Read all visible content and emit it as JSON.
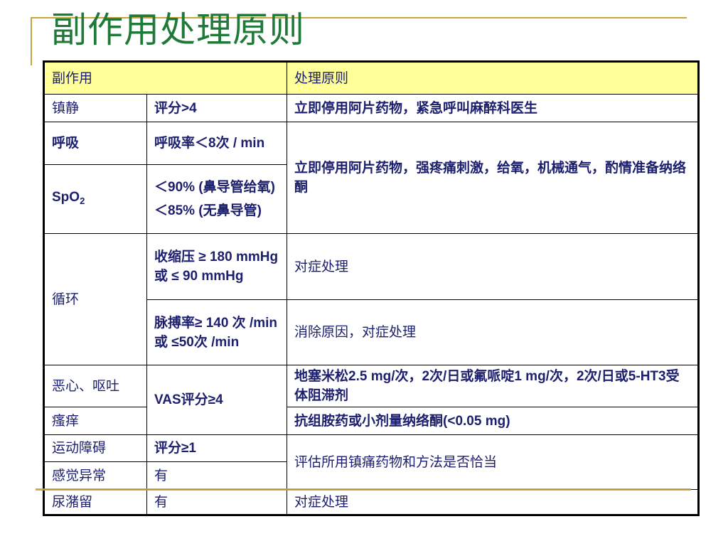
{
  "title": "副作用处理原则",
  "colors": {
    "title": "#1f7a3a",
    "text": "#1c1f6e",
    "header_bg": "#ffff99",
    "accent_line": "#c9a43a"
  },
  "table": {
    "header": {
      "side_effect": "副作用",
      "principle": "处理原则"
    },
    "rows": {
      "sedation": {
        "name": "镇静",
        "criterion": "评分>4",
        "action": "立即停用阿片药物，紧急呼叫麻醉科医生"
      },
      "respiration": {
        "name": "呼吸",
        "criterion": "呼吸率＜8次 / min",
        "action": "立即停用阿片药物，强疼痛刺激，给氧，机械通气，酌情准备纳络酮"
      },
      "spo2": {
        "name": "SpO",
        "name_sub": "2",
        "criterion1": "＜90% (鼻导管给氧)",
        "criterion2": "＜85% (无鼻导管)"
      },
      "circulation": {
        "name": "循环",
        "criterion1": "收缩压 ≥ 180 mmHg 或 ≤ 90 mmHg",
        "action1": "对症处理",
        "criterion2": "脉搏率≥ 140 次 /min 或 ≤50次 /min",
        "action2": "消除原因，对症处理"
      },
      "nausea": {
        "name": "恶心、呕吐",
        "criterion": "VAS评分≥4",
        "action": "地塞米松2.5 mg/次，2次/日或氟哌啶1 mg/次，2次/日或5-HT3受体阻滞剂"
      },
      "pruritus": {
        "name": "瘙痒",
        "action": "抗组胺药或小剂量纳络酮(<0.05 mg)"
      },
      "motor": {
        "name": "运动障碍",
        "criterion": "评分≥1",
        "action": "评估所用镇痛药物和方法是否恰当"
      },
      "sensory": {
        "name": "感觉异常",
        "criterion": "有"
      },
      "urinary": {
        "name": "尿潴留",
        "criterion": "有",
        "action": "对症处理"
      }
    }
  }
}
